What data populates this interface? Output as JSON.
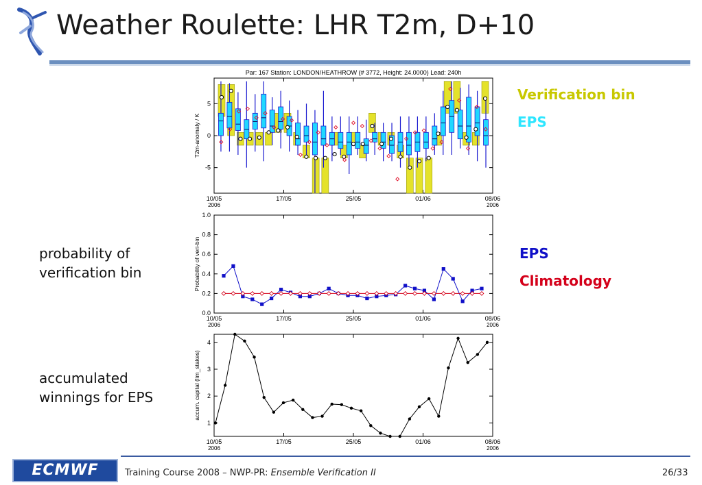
{
  "slide": {
    "title": "Weather Roulette: LHR T2m, D+10",
    "legend_top": [
      {
        "label": "Verification bin",
        "color": "#c8c800"
      },
      {
        "label": "EPS",
        "color": "#2ee6ff"
      }
    ],
    "legend_mid": [
      {
        "label": "EPS",
        "color": "#1010c8"
      },
      {
        "label": "Climatology",
        "color": "#d4001a"
      }
    ],
    "side_labels": {
      "prob": [
        "probability of",
        "verification bin"
      ],
      "acc": [
        "accumulated",
        "winnings for EPS"
      ]
    },
    "footer": {
      "logo": "ECMWF",
      "text_prefix": "Training Course 2008 – NWP-PR: ",
      "text_italic": "Ensemble Verification II",
      "page": "26/33"
    }
  },
  "chart_data": [
    {
      "type": "box",
      "title": "Par: 167 Station:  LONDON/HEATHROW  (# 3772, Height: 24.0000) Lead: 240h",
      "ylabel": "T2m-anomaly / K",
      "ylim": [
        -9,
        9
      ],
      "yticks": [
        -5,
        0,
        5
      ],
      "xticks": [
        {
          "label": "10/05",
          "sub": "2006"
        },
        {
          "label": "17/05",
          "sub": ""
        },
        {
          "label": "25/05",
          "sub": ""
        },
        {
          "label": "01/06",
          "sub": ""
        },
        {
          "label": "08/06",
          "sub": "2006"
        }
      ],
      "verif_bins": [
        [
          3,
          8
        ],
        [
          0,
          8
        ],
        [
          -1.5,
          0.5
        ],
        [
          -1.5,
          0.5
        ],
        [
          -1.5,
          0.5
        ],
        [
          -1.5,
          0.5
        ],
        [
          0.5,
          3.5
        ],
        [
          0.5,
          3.5
        ],
        [
          -1.5,
          0.5
        ],
        [
          -3.5,
          -1.5
        ],
        [
          -9,
          -3.5
        ],
        [
          -9,
          -3.5
        ],
        [
          -1.5,
          0.5
        ],
        [
          -3.5,
          -1.5
        ],
        [
          -1.5,
          0.5
        ],
        [
          -3.5,
          -1.5
        ],
        [
          0.5,
          3.5
        ],
        [
          -1.5,
          0.5
        ],
        [
          -1.5,
          0.5
        ],
        [
          -3.5,
          -1.5
        ],
        [
          -9,
          -3.5
        ],
        [
          -9,
          -3.5
        ],
        [
          -9,
          -3.5
        ],
        [
          -1.5,
          0.5
        ],
        [
          3.5,
          8.5
        ],
        [
          3.5,
          8.5
        ],
        [
          -1.5,
          0.5
        ],
        [
          -1.5,
          0.5
        ],
        [
          3.5,
          8.5
        ]
      ],
      "boxes": [
        {
          "min": -2.5,
          "q1": 0,
          "med": 2.3,
          "q3": 3.5,
          "max": 8.5
        },
        {
          "min": -2.5,
          "q1": 1.2,
          "med": 3,
          "q3": 5.2,
          "max": 8.2
        },
        {
          "min": -3,
          "q1": 0.8,
          "med": 1.8,
          "q3": 4.2,
          "max": 6.8
        },
        {
          "min": -5,
          "q1": -0.5,
          "med": 1,
          "q3": 2.5,
          "max": 8.5
        },
        {
          "min": -2.5,
          "q1": 1,
          "med": 2.2,
          "q3": 3.5,
          "max": 6.5
        },
        {
          "min": -4,
          "q1": 1.2,
          "med": 2.8,
          "q3": 6.5,
          "max": 8.5
        },
        {
          "min": -1.5,
          "q1": 0.5,
          "med": 1.5,
          "q3": 4,
          "max": 6
        },
        {
          "min": -2,
          "q1": 1,
          "med": 2.2,
          "q3": 4.5,
          "max": 7
        },
        {
          "min": -2.5,
          "q1": 0,
          "med": 1.5,
          "q3": 3,
          "max": 5.5
        },
        {
          "min": -3,
          "q1": -1.5,
          "med": -0.5,
          "q3": 2,
          "max": 4
        },
        {
          "min": -3,
          "q1": -1,
          "med": 0,
          "q3": 1.5,
          "max": 5
        },
        {
          "min": -9,
          "q1": -3,
          "med": -1,
          "q3": 2,
          "max": 4
        },
        {
          "min": -5,
          "q1": -1.5,
          "med": -0.5,
          "q3": 1.5,
          "max": 7
        },
        {
          "min": -4,
          "q1": -1.5,
          "med": -0.5,
          "q3": 0.5,
          "max": 3
        },
        {
          "min": -3,
          "q1": -2,
          "med": -1,
          "q3": 0.5,
          "max": 3
        },
        {
          "min": -6,
          "q1": -3,
          "med": -1,
          "q3": 0.5,
          "max": 3
        },
        {
          "min": -3,
          "q1": -2,
          "med": -1,
          "q3": 0.5,
          "max": 3
        },
        {
          "min": -4,
          "q1": -2.8,
          "med": -1.5,
          "q3": -0.5,
          "max": 2.5
        },
        {
          "min": -3,
          "q1": -1,
          "med": -0.5,
          "q3": 0.5,
          "max": 2
        },
        {
          "min": -4,
          "q1": -2,
          "med": -1,
          "q3": 0.5,
          "max": 2
        },
        {
          "min": -4,
          "q1": -2.8,
          "med": -1.5,
          "q3": 0,
          "max": 2
        },
        {
          "min": -5,
          "q1": -2.5,
          "med": -1,
          "q3": 0.5,
          "max": 3
        },
        {
          "min": -5,
          "q1": -3,
          "med": -1.5,
          "q3": 0.5,
          "max": 3
        },
        {
          "min": -5,
          "q1": -2.5,
          "med": -1,
          "q3": 0.5,
          "max": 3
        },
        {
          "min": -4,
          "q1": -2,
          "med": -1,
          "q3": 0.5,
          "max": 3
        },
        {
          "min": -3,
          "q1": -1.5,
          "med": -0.5,
          "q3": 1.5,
          "max": 3.5
        },
        {
          "min": -3,
          "q1": 0,
          "med": 2,
          "q3": 4.5,
          "max": 7
        },
        {
          "min": -3,
          "q1": 0.5,
          "med": 3,
          "q3": 5.5,
          "max": 8.5
        },
        {
          "min": -2,
          "q1": -0.5,
          "med": 1.5,
          "q3": 4,
          "max": 7.5
        },
        {
          "min": -3,
          "q1": -1,
          "med": 1.5,
          "q3": 6,
          "max": 8
        },
        {
          "min": -4,
          "q1": 0,
          "med": 2,
          "q3": 4.5,
          "max": 7
        },
        {
          "min": -5,
          "q1": -1.5,
          "med": 0,
          "q3": 2.5,
          "max": 6
        }
      ],
      "observations": [
        6,
        7,
        -0.5,
        -0.5,
        -0.3,
        0.5,
        0.8,
        1.3,
        -0.2,
        -3.3,
        -3.5,
        -3.5,
        -2.9,
        -3.3,
        -1.3,
        -1.3,
        1.5,
        -1.3,
        -0.5,
        -3.3,
        -5,
        -4,
        -3.5,
        0.3,
        4.5,
        4,
        -0.3,
        1,
        5.8
      ],
      "ens_means": [
        -1,
        1,
        3.8,
        4.2,
        2.8,
        3.5,
        1.3,
        2.6,
        2.4,
        -3,
        -1,
        0.5,
        -1.5,
        1.3,
        -3.8,
        2,
        1.5,
        -0.8,
        -2,
        -3.2,
        -6.8,
        -0.5,
        0.5,
        0.8,
        -2,
        -1,
        7.3,
        5.5,
        -2,
        4.5,
        1
      ]
    },
    {
      "type": "line",
      "ylabel": "Probability of veri-bin",
      "ylim": [
        0,
        1
      ],
      "yticks": [
        0.0,
        0.2,
        0.4,
        0.6,
        0.8,
        1.0
      ],
      "xticks": [
        {
          "label": "10/05",
          "sub": "2006"
        },
        {
          "label": "17/05",
          "sub": ""
        },
        {
          "label": "25/05",
          "sub": ""
        },
        {
          "label": "01/06",
          "sub": ""
        },
        {
          "label": "08/06",
          "sub": "2006"
        }
      ],
      "series": [
        {
          "name": "EPS",
          "color": "#1010c8",
          "marker": "square",
          "values": [
            0.38,
            0.48,
            0.17,
            0.14,
            0.09,
            0.15,
            0.24,
            0.21,
            0.17,
            0.17,
            0.2,
            0.25,
            0.2,
            0.18,
            0.18,
            0.15,
            0.17,
            0.18,
            0.19,
            0.28,
            0.25,
            0.23,
            0.14,
            0.45,
            0.35,
            0.12,
            0.23,
            0.25
          ]
        },
        {
          "name": "Climatology",
          "color": "#d4001a",
          "marker": "diamond",
          "values": [
            0.2,
            0.2,
            0.2,
            0.2,
            0.2,
            0.2,
            0.2,
            0.2,
            0.2,
            0.2,
            0.2,
            0.2,
            0.2,
            0.2,
            0.2,
            0.2,
            0.2,
            0.2,
            0.2,
            0.2,
            0.2,
            0.2,
            0.2,
            0.2,
            0.2,
            0.2,
            0.2,
            0.2
          ]
        }
      ]
    },
    {
      "type": "line",
      "ylabel": "accum. capital (lim_stakes)",
      "ylim": [
        0.5,
        4.3
      ],
      "yticks": [
        1,
        2,
        3,
        4
      ],
      "xticks": [
        {
          "label": "10/05",
          "sub": "2006"
        },
        {
          "label": "17/05",
          "sub": ""
        },
        {
          "label": "25/05",
          "sub": ""
        },
        {
          "label": "01/06",
          "sub": ""
        },
        {
          "label": "08/06",
          "sub": "2006"
        }
      ],
      "series": [
        {
          "name": "EPS",
          "color": "#000000",
          "marker": "dot",
          "values": [
            1.0,
            2.4,
            4.35,
            4.05,
            3.45,
            1.95,
            1.4,
            1.75,
            1.85,
            1.5,
            1.2,
            1.25,
            1.7,
            1.68,
            1.55,
            1.45,
            0.9,
            0.62,
            0.5,
            0.48,
            1.15,
            1.6,
            1.9,
            1.25,
            3.05,
            4.15,
            3.25,
            3.55,
            4.0
          ]
        }
      ]
    }
  ]
}
